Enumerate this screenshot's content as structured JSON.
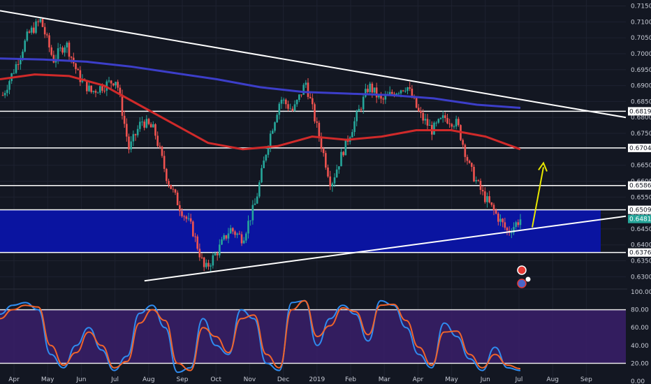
{
  "chart_data": [
    {
      "type": "candlestick",
      "title": "",
      "x_ticks": [
        "Apr",
        "May",
        "Jun",
        "Jul",
        "Aug",
        "Sep",
        "Oct",
        "Nov",
        "Dec",
        "2019",
        "Feb",
        "Mar",
        "Apr",
        "May",
        "Jun",
        "Jul",
        "Aug",
        "Sep"
      ],
      "y_ticks": [
        "0.71500",
        "0.71000",
        "0.70500",
        "0.70000",
        "0.69500",
        "0.69000",
        "0.68500",
        "0.68000",
        "0.67500",
        "0.67000",
        "0.66500",
        "0.66000",
        "0.65500",
        "0.65000",
        "0.64500",
        "0.64000",
        "0.63500",
        "0.63000"
      ],
      "ylim": [
        0.627,
        0.716
      ],
      "last_price": "0.64812",
      "price_path": [
        [
          "Apr",
          0.687
        ],
        [
          "Apr",
          0.696
        ],
        [
          "Apr",
          0.706
        ],
        [
          "Apr",
          0.7105
        ],
        [
          "May",
          0.698
        ],
        [
          "May",
          0.7035
        ],
        [
          "May",
          0.693
        ],
        [
          "Jun",
          0.688
        ],
        [
          "Jun",
          0.69
        ],
        [
          "Jun",
          0.692
        ],
        [
          "Jul",
          0.67
        ],
        [
          "Jul",
          0.679
        ],
        [
          "Aug",
          0.676
        ],
        [
          "Aug",
          0.661
        ],
        [
          "Aug",
          0.652
        ],
        [
          "Sep",
          0.645
        ],
        [
          "Sep",
          0.632
        ],
        [
          "Sep",
          0.638
        ],
        [
          "Oct",
          0.645
        ],
        [
          "Oct",
          0.642
        ],
        [
          "Oct",
          0.653
        ],
        [
          "Nov",
          0.672
        ],
        [
          "Nov",
          0.686
        ],
        [
          "Nov",
          0.682
        ],
        [
          "Dec",
          0.691
        ],
        [
          "Dec",
          0.675
        ],
        [
          "Dec",
          0.659
        ],
        [
          "2019",
          0.67
        ],
        [
          "2019",
          0.68
        ],
        [
          "Feb",
          0.69
        ],
        [
          "Feb",
          0.685
        ],
        [
          "Mar",
          0.688
        ],
        [
          "Mar",
          0.69
        ],
        [
          "Mar",
          0.681
        ],
        [
          "Apr",
          0.676
        ],
        [
          "Apr",
          0.68
        ],
        [
          "May",
          0.678
        ],
        [
          "May",
          0.664
        ],
        [
          "Jun",
          0.656
        ],
        [
          "Jun",
          0.65
        ],
        [
          "Jun",
          0.644
        ],
        [
          "Jun",
          0.6481
        ]
      ],
      "series": [
        {
          "name": "",
          "color": "#3c3ec9",
          "values": [
            0.6985,
            0.6982,
            0.6975,
            0.696,
            0.694,
            0.692,
            0.6895,
            0.688,
            0.6875,
            0.687,
            0.686,
            0.684,
            0.683
          ]
        },
        {
          "name": "",
          "color": "#d02a2a",
          "values": [
            0.692,
            0.6935,
            0.693,
            0.69,
            0.684,
            0.678,
            0.672,
            0.67,
            0.671,
            0.674,
            0.673,
            0.674,
            0.676,
            0.676,
            0.674,
            0.67
          ]
        }
      ],
      "horizontal_levels": [
        "0.68193",
        "0.67043",
        "0.65863",
        "0.65099",
        "0.63760"
      ],
      "zone": {
        "from": 0.6376,
        "to": 0.65099,
        "color": "#0a14a8"
      },
      "trendlines": [
        {
          "from": [
            0.7135,
            "start"
          ],
          "to": [
            0.68,
            "end"
          ],
          "color": "#ffffff"
        },
        {
          "from": [
            0.6287,
            "Aug"
          ],
          "to": [
            0.649,
            "end"
          ],
          "color": "#ffffff"
        }
      ],
      "arrow": {
        "color": "#e8e800",
        "from": 0.6455,
        "to": 0.6657
      }
    },
    {
      "type": "line",
      "title": "",
      "y_ticks": [
        "100.00",
        "80.00",
        "60.00",
        "40.00",
        "20.00",
        "0.00"
      ],
      "ylim": [
        0,
        100
      ],
      "bands": [
        80,
        20
      ],
      "series": [
        {
          "name": "",
          "color": "#2f8cf0",
          "values": [
            75,
            85,
            88,
            80,
            30,
            15,
            40,
            60,
            35,
            12,
            28,
            76,
            85,
            60,
            10,
            15,
            70,
            40,
            30,
            80,
            70,
            20,
            12,
            88,
            90,
            40,
            70,
            85,
            75,
            45,
            90,
            85,
            60,
            30,
            15,
            65,
            50,
            25,
            12,
            38,
            15,
            12
          ]
        },
        {
          "name": "",
          "color": "#f0642b",
          "values": [
            70,
            80,
            85,
            83,
            40,
            18,
            32,
            55,
            40,
            15,
            22,
            65,
            80,
            68,
            20,
            12,
            60,
            50,
            32,
            70,
            74,
            30,
            15,
            80,
            90,
            50,
            62,
            82,
            78,
            52,
            85,
            86,
            68,
            38,
            18,
            55,
            56,
            30,
            15,
            30,
            18,
            14
          ]
        }
      ]
    }
  ]
}
